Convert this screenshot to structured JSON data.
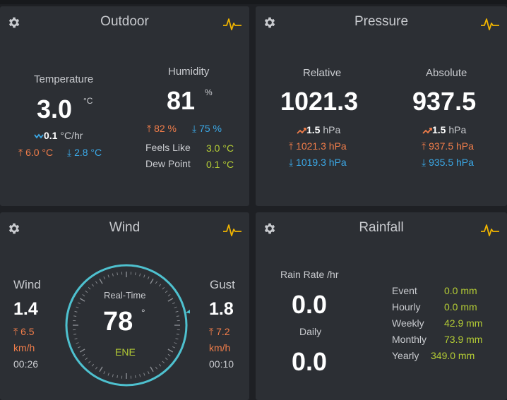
{
  "colors": {
    "up": "#f07d4a",
    "down": "#3ba8e6",
    "green": "#b4cc35",
    "accent": "#f0b400",
    "gauge_ring": "#4ec1cf"
  },
  "outdoor": {
    "title": "Outdoor",
    "temperature": {
      "label": "Temperature",
      "value": "3.0",
      "unit": "°C",
      "trend_value": "0.1",
      "trend_unit": "°C/hr",
      "high": "6.0 °C",
      "low": "2.8 °C"
    },
    "humidity": {
      "label": "Humidity",
      "value": "81",
      "unit": "%",
      "high": "82 %",
      "low": "75 %"
    },
    "feels_like": {
      "label": "Feels Like",
      "value": "3.0 °C"
    },
    "dew_point": {
      "label": "Dew Point",
      "value": "0.1 °C"
    }
  },
  "pressure": {
    "title": "Pressure",
    "relative": {
      "label": "Relative",
      "value": "1021.3",
      "trend_value": "1.5",
      "trend_unit": "hPa",
      "high": "1021.3 hPa",
      "low": "1019.3 hPa"
    },
    "absolute": {
      "label": "Absolute",
      "value": "937.5",
      "trend_value": "1.5",
      "trend_unit": "hPa",
      "high": "937.5 hPa",
      "low": "935.5 hPa"
    }
  },
  "wind": {
    "title": "Wind",
    "wind": {
      "label": "Wind",
      "value": "1.4",
      "max": "6.5",
      "unit": "km/h",
      "time": "00:26"
    },
    "gust": {
      "label": "Gust",
      "value": "1.8",
      "max": "7.2",
      "unit": "km/h",
      "time": "00:10"
    },
    "gauge": {
      "label": "Real-Time",
      "degrees": "78",
      "degree_symbol": "°",
      "direction": "ENE",
      "direction_deg": 78
    }
  },
  "rainfall": {
    "title": "Rainfall",
    "rain_rate": {
      "label": "Rain Rate /hr",
      "value": "0.0"
    },
    "daily": {
      "label": "Daily",
      "value": "0.0"
    },
    "stats": [
      {
        "label": "Event",
        "value": "0.0 mm"
      },
      {
        "label": "Hourly",
        "value": "0.0 mm"
      },
      {
        "label": "Weekly",
        "value": "42.9 mm"
      },
      {
        "label": "Monthly",
        "value": "73.9 mm"
      },
      {
        "label": "Yearly",
        "value": "349.0 mm"
      }
    ]
  }
}
